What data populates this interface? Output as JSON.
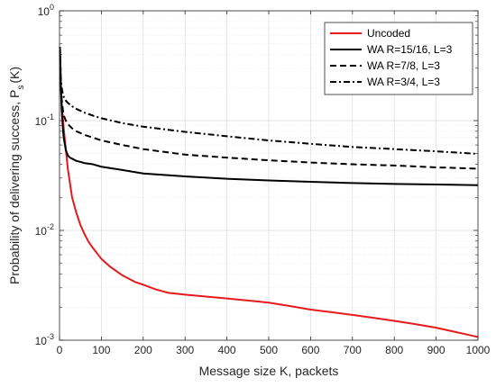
{
  "chart_data": {
    "type": "line",
    "title": "",
    "xlabel": "Message size K, packets",
    "ylabel_main": "Probability of delivering success, P",
    "ylabel_sub": "s",
    "ylabel_tail": "(K)",
    "xlim": [
      0,
      1000
    ],
    "ylim": [
      0.001,
      1
    ],
    "yscale": "log",
    "grid": true,
    "minor_grid": true,
    "legend_position": "top-right",
    "x_ticks": [
      0,
      100,
      200,
      300,
      400,
      500,
      600,
      700,
      800,
      900,
      1000
    ],
    "x_tick_labels": [
      "0",
      "100",
      "200",
      "300",
      "400",
      "500",
      "600",
      "700",
      "800",
      "900",
      "1000"
    ],
    "y_ticks": [
      0.001,
      0.01,
      0.1,
      1
    ],
    "y_tick_labels": [
      {
        "base": "10",
        "exp": "-3"
      },
      {
        "base": "10",
        "exp": "-2"
      },
      {
        "base": "10",
        "exp": "-1"
      },
      {
        "base": "10",
        "exp": "0"
      }
    ],
    "series": [
      {
        "name": "Uncoded",
        "color": "#e41a1c",
        "style": "solid",
        "x": [
          1,
          2,
          3,
          5,
          8,
          10,
          15,
          20,
          30,
          40,
          50,
          60,
          70,
          80,
          100,
          120,
          150,
          180,
          200,
          230,
          260,
          300,
          350,
          400,
          450,
          500,
          550,
          600,
          650,
          700,
          750,
          800,
          850,
          900,
          950,
          1000
        ],
        "y": [
          0.42,
          0.3,
          0.22,
          0.15,
          0.105,
          0.085,
          0.055,
          0.036,
          0.02,
          0.0145,
          0.0112,
          0.0092,
          0.0078,
          0.0069,
          0.0055,
          0.0047,
          0.0039,
          0.0034,
          0.0032,
          0.0029,
          0.0027,
          0.0026,
          0.0025,
          0.0024,
          0.0023,
          0.0022,
          0.00205,
          0.0019,
          0.0018,
          0.0017,
          0.0016,
          0.0015,
          0.0014,
          0.0013,
          0.00118,
          0.00107
        ]
      },
      {
        "name": "WA R=15/16, L=3",
        "color": "#000000",
        "style": "solid",
        "x": [
          1,
          3,
          5,
          8,
          10,
          15,
          20,
          25,
          30,
          40,
          50,
          60,
          80,
          100,
          150,
          200,
          300,
          400,
          500,
          600,
          700,
          800,
          900,
          1000
        ],
        "y": [
          0.47,
          0.22,
          0.13,
          0.085,
          0.07,
          0.054,
          0.048,
          0.046,
          0.045,
          0.043,
          0.042,
          0.041,
          0.04,
          0.038,
          0.0355,
          0.033,
          0.031,
          0.0295,
          0.0285,
          0.0277,
          0.027,
          0.0265,
          0.0262,
          0.0258
        ]
      },
      {
        "name": "WA R=7/8, L=3",
        "color": "#000000",
        "style": "dashed",
        "x": [
          1,
          3,
          5,
          8,
          10,
          15,
          20,
          30,
          40,
          50,
          60,
          80,
          100,
          150,
          200,
          300,
          400,
          500,
          600,
          700,
          800,
          900,
          1000
        ],
        "y": [
          0.47,
          0.22,
          0.16,
          0.125,
          0.112,
          0.1,
          0.093,
          0.085,
          0.08,
          0.077,
          0.074,
          0.07,
          0.066,
          0.06,
          0.055,
          0.049,
          0.046,
          0.0435,
          0.0415,
          0.04,
          0.039,
          0.0375,
          0.0365
        ]
      },
      {
        "name": "WA R=3/4, L=3",
        "color": "#000000",
        "style": "dashdot",
        "x": [
          1,
          3,
          5,
          8,
          10,
          15,
          20,
          30,
          40,
          50,
          60,
          80,
          100,
          150,
          200,
          300,
          400,
          500,
          600,
          700,
          800,
          900,
          1000
        ],
        "y": [
          0.47,
          0.25,
          0.2,
          0.175,
          0.165,
          0.152,
          0.145,
          0.135,
          0.128,
          0.123,
          0.118,
          0.111,
          0.105,
          0.095,
          0.088,
          0.079,
          0.072,
          0.066,
          0.0615,
          0.0575,
          0.055,
          0.0525,
          0.0498
        ]
      }
    ]
  }
}
